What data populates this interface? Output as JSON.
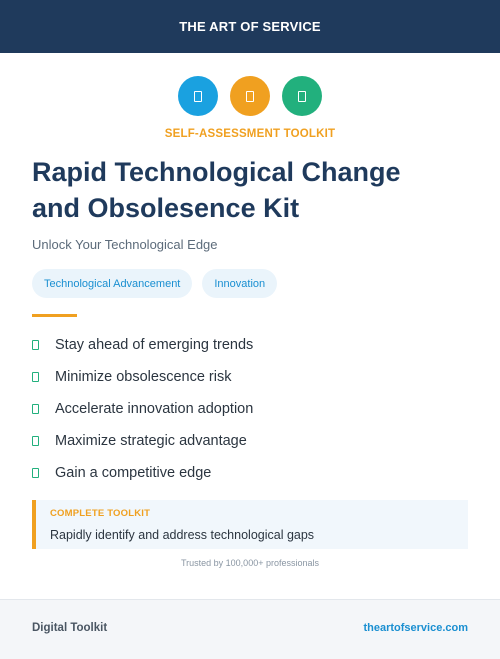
{
  "header": {
    "brand": "THE ART OF SERVICE"
  },
  "icons": [
    {
      "name": "document-icon",
      "color": "#1aa1e0"
    },
    {
      "name": "document-icon",
      "color": "#f0a020"
    },
    {
      "name": "document-icon",
      "color": "#22b07d"
    }
  ],
  "eyebrow": "SELF-ASSESSMENT TOOLKIT",
  "title_lines": [
    "Rapid Technological Change",
    "and Obsolesence Kit"
  ],
  "subtitle": "Unlock Your Technological Edge",
  "tags": [
    "Technological Advancement",
    "Innovation"
  ],
  "benefits": [
    "Stay ahead of emerging trends",
    "Minimize obsolescence risk",
    "Accelerate innovation adoption",
    "Maximize strategic advantage",
    "Gain a competitive edge"
  ],
  "callout": {
    "label": "COMPLETE TOOLKIT",
    "text": "Rapidly identify and address technological gaps"
  },
  "trusted": "Trusted by 100,000+ professionals",
  "footer": {
    "left": "Digital Toolkit",
    "right": "theartofservice.com"
  },
  "colors": {
    "navy": "#1f3a5c",
    "orange": "#f0a020",
    "blue": "#1a8fd1",
    "green": "#22b07d"
  }
}
